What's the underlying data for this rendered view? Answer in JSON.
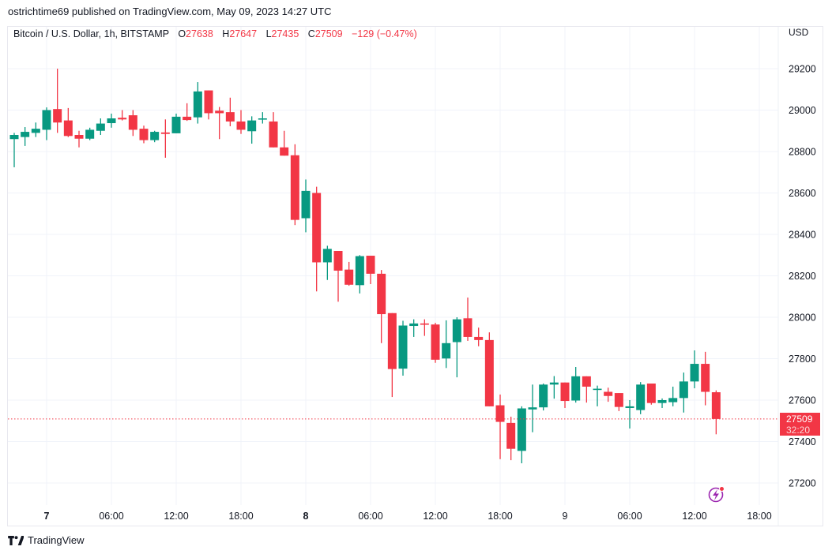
{
  "header": {
    "publish_line": "ostrichtime69 published on TradingView.com, May 09, 2023 14:27 UTC"
  },
  "legend": {
    "symbol": "Bitcoin / U.S. Dollar, 1h, BITSTAMP",
    "open_label": "O",
    "open": "27638",
    "high_label": "H",
    "high": "27647",
    "low_label": "L",
    "low": "27435",
    "close_label": "C",
    "close": "27509",
    "change": "−129 (−0.47%)"
  },
  "price_axis": {
    "currency": "USD",
    "ticks": [
      "29200",
      "29000",
      "28800",
      "28600",
      "28400",
      "28200",
      "28000",
      "27800",
      "27600",
      "27400",
      "27200"
    ]
  },
  "time_axis": {
    "ticks": [
      {
        "label": "7",
        "bold": true
      },
      {
        "label": "06:00",
        "bold": false
      },
      {
        "label": "12:00",
        "bold": false
      },
      {
        "label": "18:00",
        "bold": false
      },
      {
        "label": "8",
        "bold": true
      },
      {
        "label": "06:00",
        "bold": false
      },
      {
        "label": "12:00",
        "bold": false
      },
      {
        "label": "18:00",
        "bold": false
      },
      {
        "label": "9",
        "bold": false
      },
      {
        "label": "06:00",
        "bold": false
      },
      {
        "label": "12:00",
        "bold": false
      },
      {
        "label": "18:00",
        "bold": false
      }
    ]
  },
  "last_price": {
    "value": "27509",
    "countdown": "32:20",
    "color": "#f23645"
  },
  "colors": {
    "up": "#089981",
    "down": "#f23645",
    "grid": "#f0f3fa",
    "accent_icon": "#9c27b0"
  },
  "footer": {
    "brand": "TradingView"
  },
  "icons": {
    "lightning": "lightning-alert-icon",
    "logo": "tradingview-logo-icon"
  },
  "chart_data": {
    "type": "candlestick",
    "title": "Bitcoin / U.S. Dollar, 1h, BITSTAMP",
    "xlabel": "",
    "ylabel": "USD",
    "ylim": [
      27100,
      29330
    ],
    "grid": true,
    "interval": "1h",
    "start": "May 6 21:00",
    "end": "May 9 14:00",
    "fields": [
      "open",
      "high",
      "low",
      "close"
    ],
    "candles": [
      [
        28860,
        28890,
        28724,
        28880
      ],
      [
        28870,
        28918,
        28827,
        28895
      ],
      [
        28890,
        28940,
        28870,
        28910
      ],
      [
        28905,
        29013,
        28855,
        29000
      ],
      [
        29005,
        29200,
        28890,
        28940
      ],
      [
        28950,
        29010,
        28870,
        28875
      ],
      [
        28880,
        28900,
        28820,
        28862
      ],
      [
        28862,
        28915,
        28855,
        28905
      ],
      [
        28900,
        28960,
        28880,
        28935
      ],
      [
        28937,
        28983,
        28915,
        28960
      ],
      [
        28963,
        29000,
        28950,
        28955
      ],
      [
        28975,
        29000,
        28875,
        28905
      ],
      [
        28910,
        28925,
        28840,
        28855
      ],
      [
        28855,
        28900,
        28845,
        28895
      ],
      [
        28892,
        28955,
        28770,
        28885
      ],
      [
        28888,
        28983,
        28888,
        28968
      ],
      [
        28968,
        29033,
        28948,
        28952
      ],
      [
        28965,
        29135,
        28935,
        29090
      ],
      [
        29095,
        29095,
        28955,
        28985
      ],
      [
        28997,
        29015,
        28860,
        28985
      ],
      [
        28990,
        29060,
        28922,
        28945
      ],
      [
        28945,
        29000,
        28885,
        28905
      ],
      [
        28898,
        28970,
        28838,
        28950
      ],
      [
        28955,
        28990,
        28935,
        28960
      ],
      [
        28945,
        28990,
        28820,
        28820
      ],
      [
        28820,
        28900,
        28780,
        28780
      ],
      [
        28782,
        28835,
        28445,
        28470
      ],
      [
        28478,
        28665,
        28410,
        28610
      ],
      [
        28600,
        28630,
        28125,
        28265
      ],
      [
        28265,
        28345,
        28180,
        28330
      ],
      [
        28320,
        28320,
        28075,
        28225
      ],
      [
        28230,
        28267,
        28152,
        28157
      ],
      [
        28155,
        28300,
        28115,
        28295
      ],
      [
        28297,
        28297,
        28160,
        28210
      ],
      [
        28210,
        28228,
        27875,
        28015
      ],
      [
        28020,
        28020,
        27615,
        27750
      ],
      [
        27752,
        27983,
        27718,
        27960
      ],
      [
        27958,
        27990,
        27905,
        27970
      ],
      [
        27970,
        27990,
        27910,
        27965
      ],
      [
        27965,
        27973,
        27780,
        27795
      ],
      [
        27801,
        27985,
        27755,
        27875
      ],
      [
        27880,
        28000,
        27710,
        27990
      ],
      [
        27995,
        28095,
        27886,
        27905
      ],
      [
        27905,
        27950,
        27860,
        27890
      ],
      [
        27890,
        27927,
        27570,
        27570
      ],
      [
        27575,
        27627,
        27315,
        27495
      ],
      [
        27490,
        27520,
        27310,
        27365
      ],
      [
        27355,
        27570,
        27295,
        27560
      ],
      [
        27555,
        27675,
        27445,
        27565
      ],
      [
        27565,
        27680,
        27550,
        27675
      ],
      [
        27675,
        27716,
        27607,
        27685
      ],
      [
        27685,
        27685,
        27562,
        27596
      ],
      [
        27598,
        27760,
        27588,
        27715
      ],
      [
        27715,
        27715,
        27588,
        27665
      ],
      [
        27650,
        27670,
        27570,
        27655
      ],
      [
        27640,
        27660,
        27592,
        27620
      ],
      [
        27634,
        27634,
        27547,
        27567
      ],
      [
        27562,
        27600,
        27463,
        27570
      ],
      [
        27552,
        27687,
        27532,
        27675
      ],
      [
        27680,
        27680,
        27578,
        27586
      ],
      [
        27586,
        27608,
        27562,
        27600
      ],
      [
        27590,
        27665,
        27570,
        27610
      ],
      [
        27610,
        27733,
        27540,
        27690
      ],
      [
        27690,
        27840,
        27657,
        27775
      ],
      [
        27775,
        27833,
        27575,
        27640
      ],
      [
        27638,
        27647,
        27435,
        27509
      ]
    ],
    "last_close": 27509,
    "change": -129,
    "change_pct": -0.47
  }
}
